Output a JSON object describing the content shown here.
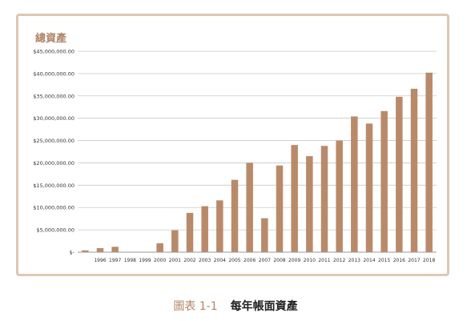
{
  "chart_data": {
    "type": "bar",
    "title": "總資產",
    "categories": [
      "",
      "1996",
      "1997",
      "1998",
      "1999",
      "2000",
      "2001",
      "2002",
      "2003",
      "2004",
      "2005",
      "2006",
      "2007",
      "2008",
      "2009",
      "2010",
      "2011",
      "2012",
      "2013",
      "2014",
      "2015",
      "2016",
      "2017",
      "2018"
    ],
    "values": [
      400000,
      900000,
      1200000,
      0,
      0,
      2000000,
      4900000,
      8800000,
      10300000,
      11600000,
      16200000,
      20000000,
      7600000,
      19400000,
      24000000,
      21500000,
      23800000,
      25000000,
      30400000,
      28800000,
      31600000,
      34800000,
      36600000,
      40200000
    ],
    "ylim": [
      0,
      45000000
    ],
    "yticks": [
      "$-",
      "$5,000,000.00",
      "$10,000,000.00",
      "$15,000,000.00",
      "$20,000,000.00",
      "$25,000,000.00",
      "$30,000,000.00",
      "$35,000,000.00",
      "$40,000,000.00",
      "$45,000,000.00"
    ],
    "xlabel": "",
    "ylabel": "",
    "grid": true,
    "bar_color": "#b98a6a"
  },
  "caption": {
    "number": "圖表 1-1",
    "title": "每年帳面資產"
  },
  "colors": {
    "frame": "#dcc8b2",
    "title": "#b08566",
    "caption_number": "#b08566"
  }
}
